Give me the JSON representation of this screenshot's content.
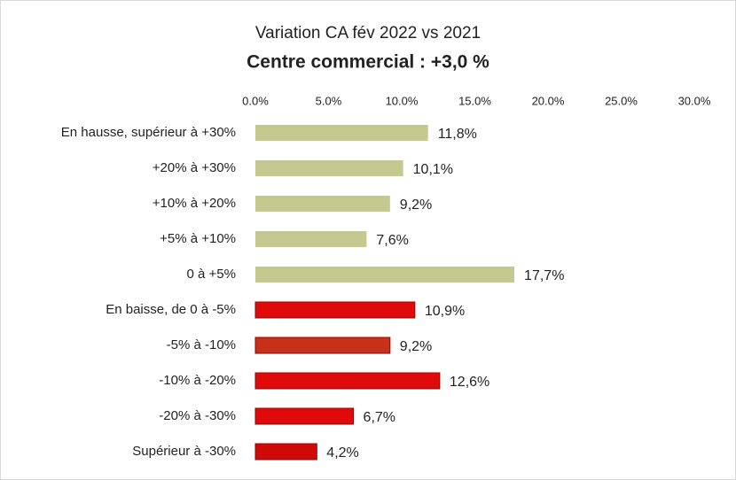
{
  "chart_data": {
    "type": "hbar",
    "title": "Variation CA fév 2022 vs 2021",
    "subtitle": "Centre commercial  : +3,0 %",
    "categories": [
      "En hausse, supérieur à +30%",
      "+20% à +30%",
      "+10% à +20%",
      "+5% à +10%",
      "0 à +5%",
      "En baisse, de 0 à -5%",
      "-5% à -10%",
      "-10% à -20%",
      "-20% à -30%",
      "Supérieur à -30%"
    ],
    "values": [
      11.8,
      10.1,
      9.2,
      7.6,
      17.7,
      10.9,
      9.2,
      12.6,
      6.7,
      4.2
    ],
    "value_labels": [
      "11,8%",
      "10,1%",
      "9,2%",
      "7,6%",
      "17,7%",
      "10,9%",
      "9,2%",
      "12,6%",
      "6,7%",
      "4,2%"
    ],
    "colors": [
      "#c4c98f",
      "#c4c98f",
      "#c4c98f",
      "#c4c98f",
      "#c4c98f",
      "#e00a0a",
      "#c9301a",
      "#e00a0a",
      "#e00a0a",
      "#d00808"
    ],
    "xlim": [
      0,
      30
    ],
    "xticks": [
      {
        "value": 0,
        "label": "0.0%"
      },
      {
        "value": 5,
        "label": "5.0%"
      },
      {
        "value": 10,
        "label": "10.0%"
      },
      {
        "value": 15,
        "label": "15.0%"
      },
      {
        "value": 20,
        "label": "20.0%"
      },
      {
        "value": 25,
        "label": "25.0%"
      },
      {
        "value": 30,
        "label": "30.0%"
      }
    ],
    "grid": false
  }
}
